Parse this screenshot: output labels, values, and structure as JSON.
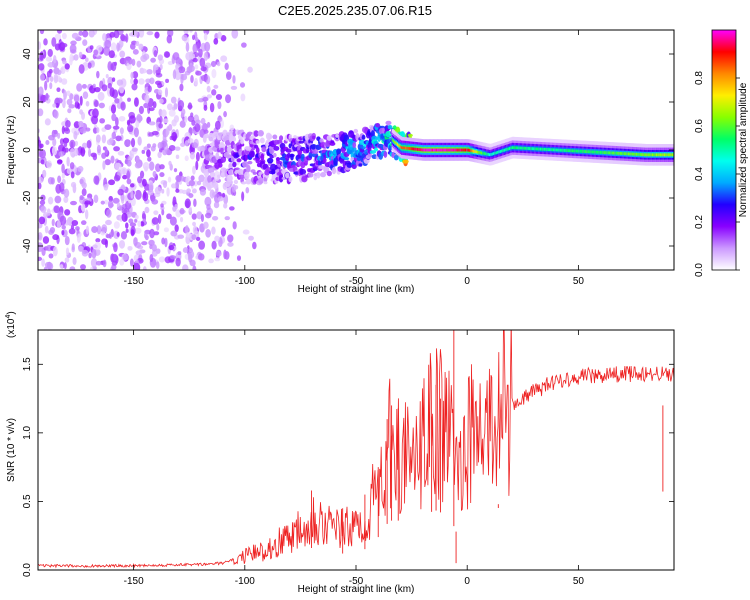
{
  "figure": {
    "title": "C2E5.2025.235.07.06.R15"
  },
  "chart_data": [
    {
      "type": "heatmap",
      "title": "C2E5.2025.235.07.06.R15",
      "xlabel": "Height of straight line (km)",
      "ylabel": "Frequency (Hz)",
      "xlim": [
        -193,
        93
      ],
      "ylim": [
        -50,
        50
      ],
      "xticks": [
        -150,
        -100,
        -50,
        0,
        50
      ],
      "yticks": [
        -40,
        -20,
        0,
        20,
        40
      ],
      "colorbar": {
        "label": "Normalized spectral amplitude",
        "range": [
          0.0,
          1.0
        ],
        "ticks": [
          "0.0",
          "0.2",
          "0.4",
          "0.6",
          "0.8"
        ],
        "tick_values": [
          0.0,
          0.2,
          0.4,
          0.6,
          0.8
        ],
        "colormap": [
          "#ffffff",
          "#cc99ff",
          "#8800ff",
          "#2200ff",
          "#00aaff",
          "#00ffee",
          "#00ff66",
          "#88ff00",
          "#ffee00",
          "#ff8800",
          "#ff0000",
          "#ff00ff"
        ]
      },
      "ridge": {
        "x": [
          -120,
          -100,
          -80,
          -60,
          -45,
          -35,
          -30,
          -20,
          -10,
          0,
          5,
          10,
          20,
          40,
          60,
          80,
          93
        ],
        "freq": [
          -5,
          -3,
          -4,
          -2,
          2,
          5,
          1,
          0,
          0,
          0,
          -1,
          -2,
          1,
          0,
          -1,
          -2,
          -2
        ],
        "amplitude": [
          0.15,
          0.25,
          0.3,
          0.35,
          0.4,
          0.5,
          0.8,
          0.95,
          0.95,
          0.9,
          0.6,
          0.45,
          0.5,
          0.5,
          0.55,
          0.6,
          0.65
        ]
      }
    },
    {
      "type": "line",
      "xlabel": "Height of straight line (km)",
      "ylabel": "SNR (10 * v/v)",
      "yscale_label": "(x10",
      "yscale_exponent": "4",
      "xlim": [
        -193,
        93
      ],
      "ylim": [
        0,
        1.75
      ],
      "xticks": [
        -150,
        -100,
        -50,
        0,
        50
      ],
      "yticks": [
        0.0,
        0.5,
        1.0,
        1.5
      ],
      "ytick_labels": [
        "0.0",
        "0.5",
        "1.0",
        "1.5"
      ],
      "color": "#ee2222",
      "envelope": {
        "x": [
          -193,
          -160,
          -120,
          -110,
          -100,
          -90,
          -80,
          -70,
          -60,
          -50,
          -45,
          -40,
          -35,
          -30,
          -25,
          -20,
          -15,
          -12,
          -8,
          -5,
          -2,
          0,
          5,
          10,
          15,
          20,
          30,
          40,
          50,
          60,
          70,
          80,
          93
        ],
        "y": [
          0.03,
          0.03,
          0.04,
          0.05,
          0.1,
          0.15,
          0.25,
          0.4,
          0.3,
          0.3,
          0.4,
          0.6,
          0.9,
          0.9,
          0.7,
          0.9,
          1.1,
          1.05,
          1.0,
          0.7,
          0.9,
          0.95,
          1.0,
          1.05,
          1.15,
          1.2,
          1.3,
          1.38,
          1.41,
          1.42,
          1.43,
          1.43,
          1.43
        ]
      },
      "spikes": [
        {
          "x": -70,
          "y": 0.58
        },
        {
          "x": -56,
          "y": 0.45
        },
        {
          "x": -46,
          "y": 0.55
        },
        {
          "x": -40,
          "y": 0.75
        },
        {
          "x": -36,
          "y": 1.1
        },
        {
          "x": -34,
          "y": 1.2
        },
        {
          "x": -31,
          "y": 1.18
        },
        {
          "x": -16,
          "y": 1.12
        },
        {
          "x": -14,
          "y": 1.35
        },
        {
          "x": -12,
          "y": 1.25
        },
        {
          "x": -6,
          "y": 1.75
        },
        {
          "x": -5,
          "y": 0.05
        },
        {
          "x": 14,
          "y": 0.48
        },
        {
          "x": 88,
          "y": 1.2
        }
      ]
    }
  ]
}
